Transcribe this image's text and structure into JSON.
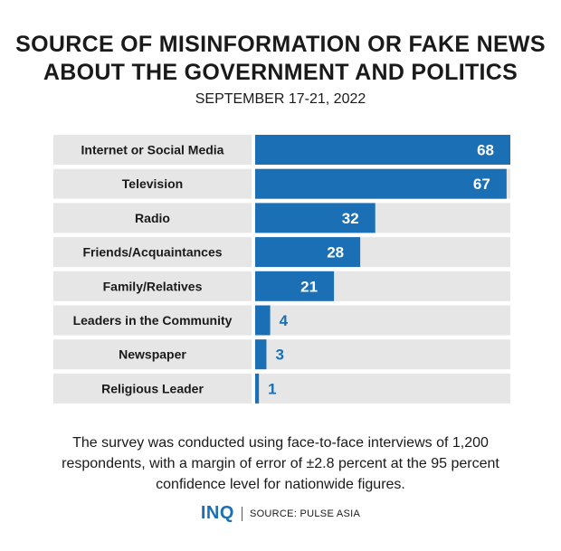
{
  "colors": {
    "bar": "#1b6fb5",
    "label_bg": "#e6e6e6",
    "value_inside": "#ffffff",
    "value_outside": "#1b6fb5"
  },
  "chart_data": {
    "type": "bar",
    "orientation": "horizontal",
    "title": "SOURCE OF MISINFORMATION OR FAKE NEWS ABOUT THE GOVERNMENT AND POLITICS",
    "subtitle": "SEPTEMBER 17-21, 2022",
    "categories": [
      "Internet or Social Media",
      "Television",
      "Radio",
      "Friends/Acquaintances",
      "Family/Relatives",
      "Leaders in the Community",
      "Newspaper",
      "Religious Leader"
    ],
    "values": [
      68,
      67,
      32,
      28,
      21,
      4,
      3,
      1
    ],
    "xlim": [
      0,
      68
    ],
    "grid": false,
    "legend": "none"
  },
  "title_line1": "SOURCE OF MISINFORMATION OR FAKE NEWS",
  "title_line2": "ABOUT THE GOVERNMENT AND POLITICS",
  "subtitle": "SEPTEMBER 17-21, 2022",
  "note": "The survey was conducted using face-to-face interviews of 1,200 respondents, with a margin of error of ±2.8 percent at the 95 percent confidence level for nationwide figures.",
  "footer": {
    "logo": "INQ",
    "source": "SOURCE: PULSE ASIA"
  }
}
